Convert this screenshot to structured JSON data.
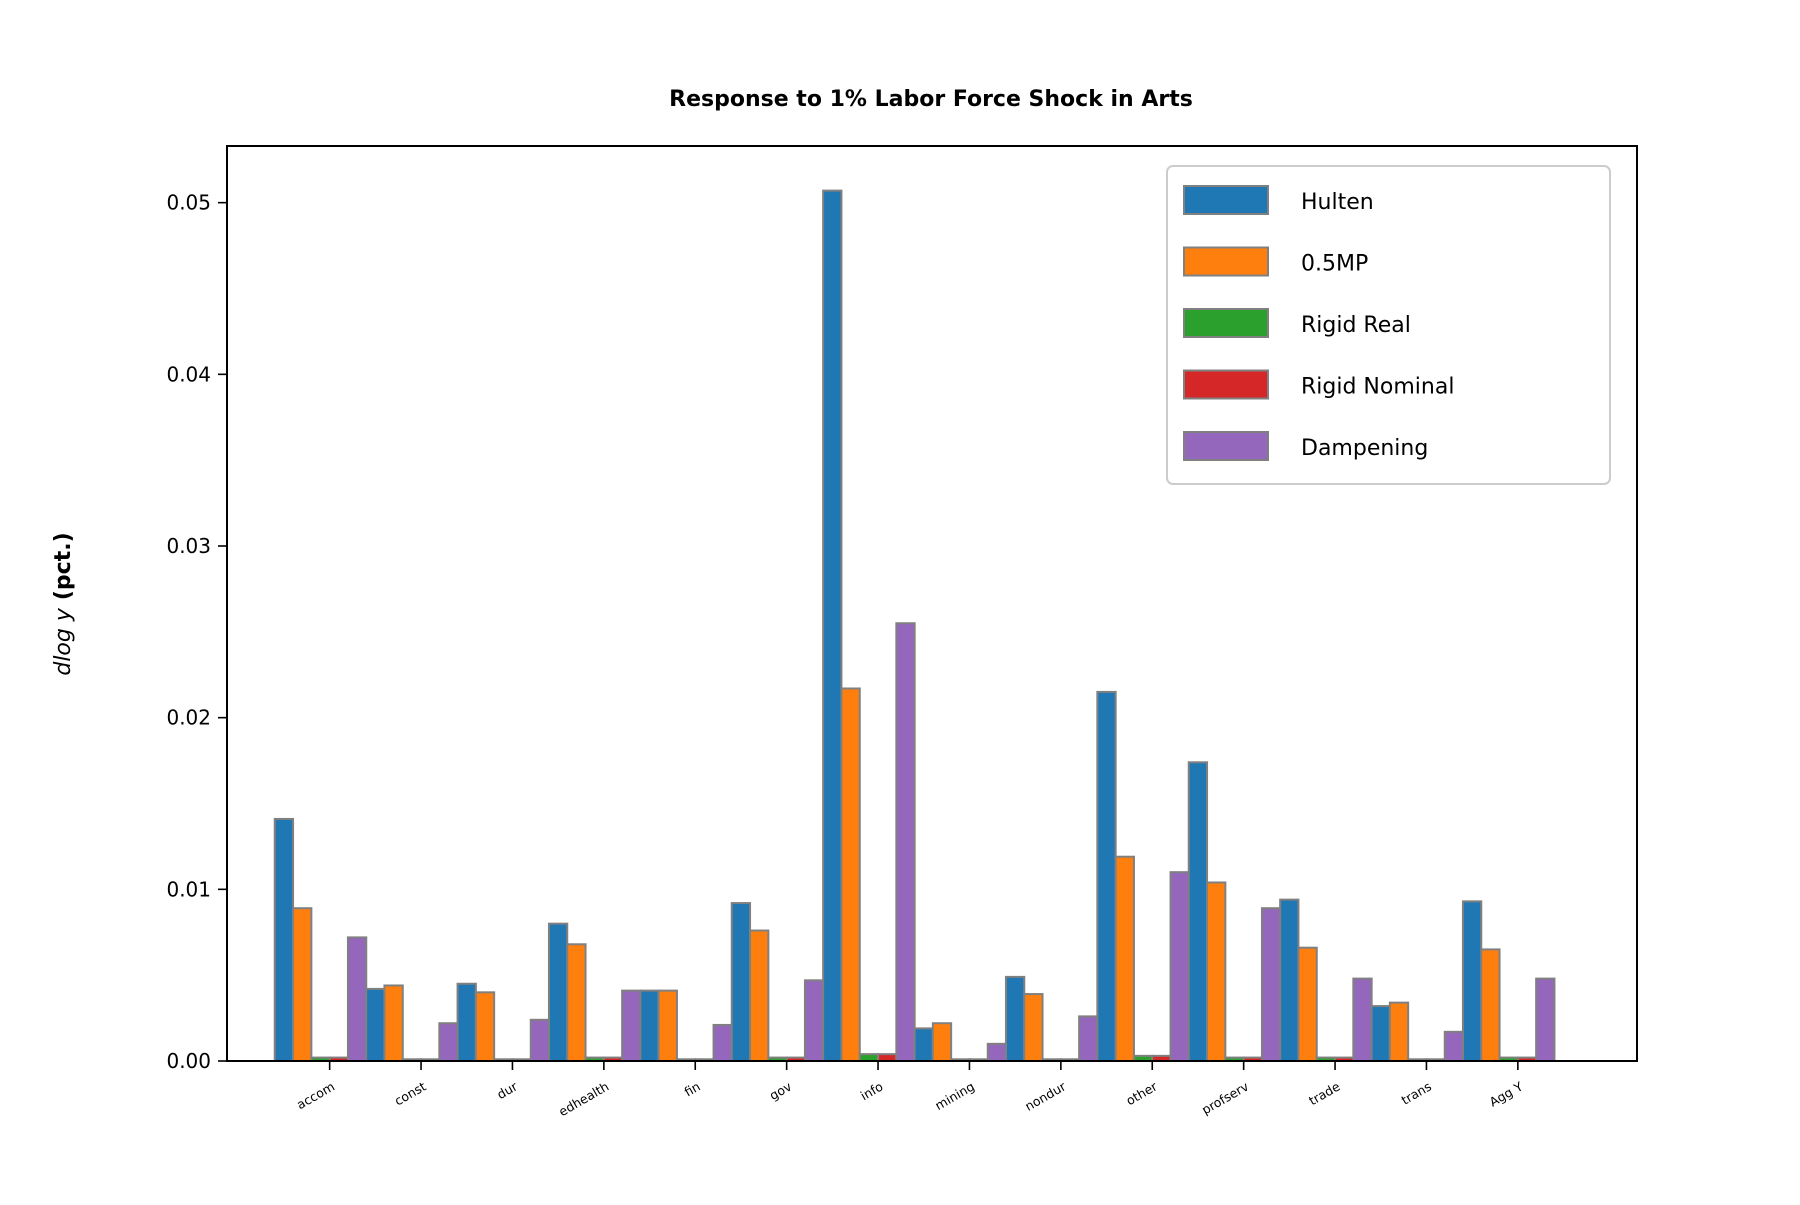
{
  "chart_data": {
    "type": "bar",
    "title": "Response to 1% Labor Force Shock in Arts",
    "xlabel": "",
    "ylabel": {
      "math": "dlog y",
      "unit": "(pct.)"
    },
    "ylim": [
      0,
      0.0533
    ],
    "yticks": [
      "0.00",
      "0.01",
      "0.02",
      "0.03",
      "0.04",
      "0.05"
    ],
    "categories": [
      "accom",
      "const",
      "dur",
      "edhealth",
      "fin",
      "gov",
      "info",
      "mining",
      "nondur",
      "other",
      "profserv",
      "trade",
      "trans",
      "Agg Y"
    ],
    "series": [
      {
        "name": "Hulten",
        "color": "#1f77b4",
        "values": [
          0.0141,
          0.0042,
          0.0045,
          0.008,
          0.0041,
          0.0092,
          0.0507,
          0.0019,
          0.0049,
          0.0215,
          0.0174,
          0.0094,
          0.0032,
          0.0093
        ]
      },
      {
        "name": "0.5MP",
        "color": "#ff7f0e",
        "values": [
          0.0089,
          0.0044,
          0.004,
          0.0068,
          0.0041,
          0.0076,
          0.0217,
          0.0022,
          0.0039,
          0.0119,
          0.0104,
          0.0066,
          0.0034,
          0.0065
        ]
      },
      {
        "name": "Rigid Real",
        "color": "#2ca02c",
        "values": [
          0.0002,
          0.0001,
          0.0001,
          0.0002,
          0.0001,
          0.0002,
          0.0004,
          0.0001,
          0.0001,
          0.0003,
          0.0002,
          0.0002,
          0.0001,
          0.0002
        ]
      },
      {
        "name": "Rigid Nominal",
        "color": "#d62728",
        "values": [
          0.0002,
          0.0001,
          0.0001,
          0.0002,
          0.0001,
          0.0002,
          0.0004,
          0.0001,
          0.0001,
          0.0003,
          0.0002,
          0.0002,
          0.0001,
          0.0002
        ]
      },
      {
        "name": "Dampening",
        "color": "#9467bd",
        "values": [
          0.0072,
          0.0022,
          0.0024,
          0.0041,
          0.0021,
          0.0047,
          0.0255,
          0.001,
          0.0026,
          0.011,
          0.0089,
          0.0048,
          0.0017,
          0.0048
        ]
      }
    ],
    "legend": "top-right",
    "grid": false,
    "bar_edge_color": "#808080"
  }
}
